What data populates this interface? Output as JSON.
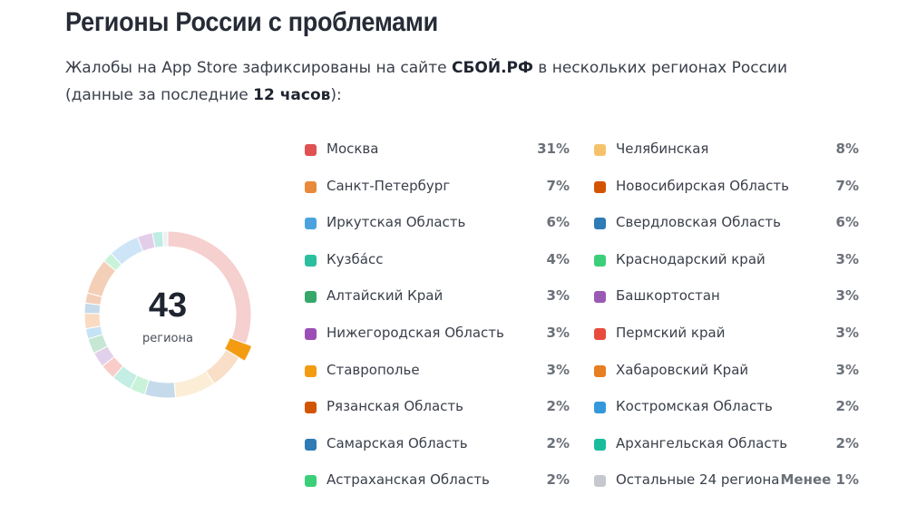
{
  "header": {
    "title": "Регионы России с проблемами",
    "subtitle_1": "Жалобы на App Store зафиксированы на сайте ",
    "subtitle_brand": "СБОЙ.РФ",
    "subtitle_2": " в нескольких регионах России (данные за последние ",
    "subtitle_hours": "12 часов",
    "subtitle_3": "):"
  },
  "donut": {
    "center_value": "43",
    "center_label": "региона",
    "highlight_index": 6
  },
  "chart_data": {
    "type": "pie",
    "total_regions": 43,
    "series": [
      {
        "name": "Москва",
        "label": "31%",
        "value": 31,
        "color": "#e05252"
      },
      {
        "name": "Санкт-Петербург",
        "label": "7%",
        "value": 7,
        "color": "#e88a3a"
      },
      {
        "name": "Иркутская Область",
        "label": "6%",
        "value": 6,
        "color": "#4aa3df"
      },
      {
        "name": "Кузба́сс",
        "label": "4%",
        "value": 4,
        "color": "#2bbf9d"
      },
      {
        "name": "Алтайский Край",
        "label": "3%",
        "value": 3,
        "color": "#35a869"
      },
      {
        "name": "Нижегородская Область",
        "label": "3%",
        "value": 3,
        "color": "#9b4fb5"
      },
      {
        "name": "Ставрополье",
        "label": "3%",
        "value": 3,
        "color": "#f39c12"
      },
      {
        "name": "Рязанская Область",
        "label": "2%",
        "value": 2,
        "color": "#d35400"
      },
      {
        "name": "Самарская Область",
        "label": "2%",
        "value": 2,
        "color": "#2e7bb5"
      },
      {
        "name": "Астраханская Область",
        "label": "2%",
        "value": 2,
        "color": "#3ccf7a"
      },
      {
        "name": "Челябинская",
        "label": "8%",
        "value": 8,
        "color": "#f5c26b"
      },
      {
        "name": "Новосибирская Область",
        "label": "7%",
        "value": 7,
        "color": "#d35400"
      },
      {
        "name": "Свердловская Область",
        "label": "6%",
        "value": 6,
        "color": "#2e7bb5"
      },
      {
        "name": "Краснодарский край",
        "label": "3%",
        "value": 3,
        "color": "#3ccf7a"
      },
      {
        "name": "Башкортостан",
        "label": "3%",
        "value": 3,
        "color": "#9b59b6"
      },
      {
        "name": "Пермский край",
        "label": "3%",
        "value": 3,
        "color": "#e74c3c"
      },
      {
        "name": "Хабаровский Край",
        "label": "3%",
        "value": 3,
        "color": "#e67e22"
      },
      {
        "name": "Костромская Область",
        "label": "2%",
        "value": 2,
        "color": "#3498db"
      },
      {
        "name": "Архангельская Область",
        "label": "2%",
        "value": 2,
        "color": "#1abc9c"
      },
      {
        "name": "Остальные 24 региона",
        "label": "Менее 1%",
        "value": 1,
        "color": "#c5c8cd"
      }
    ]
  }
}
